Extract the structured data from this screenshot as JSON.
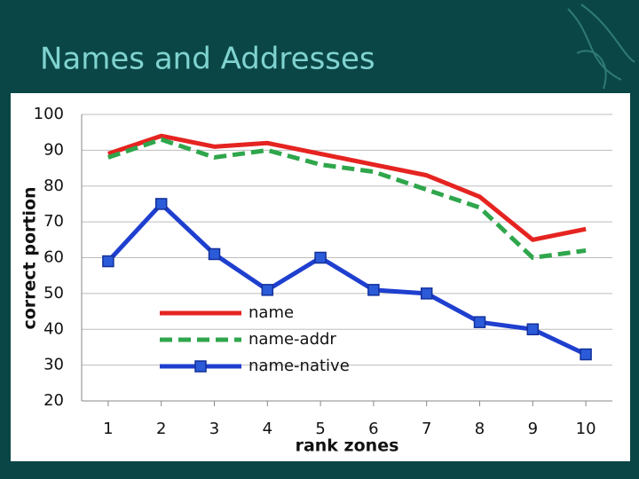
{
  "chart_data": {
    "type": "line",
    "title": "Names and Addresses",
    "x_label": "rank zones",
    "y_label": "correct portion",
    "x": [
      1,
      2,
      3,
      4,
      5,
      6,
      7,
      8,
      9,
      10
    ],
    "xlim": [
      0.5,
      10.5
    ],
    "xticks": [
      1,
      2,
      3,
      4,
      5,
      6,
      7,
      8,
      9,
      10
    ],
    "ylim": [
      20,
      100
    ],
    "yticks": [
      20,
      30,
      40,
      50,
      60,
      70,
      80,
      90,
      100
    ],
    "grid": true,
    "legend": "center-left",
    "series": [
      {
        "name": "name",
        "color": "#e52421",
        "dash": false,
        "marker": false,
        "values": [
          89,
          94,
          91,
          92,
          89,
          86,
          83,
          77,
          65,
          68
        ]
      },
      {
        "name": "name-addr",
        "color": "#2fa64c",
        "dash": true,
        "marker": false,
        "values": [
          88,
          93,
          88,
          90,
          86,
          84,
          79,
          74,
          60,
          62
        ]
      },
      {
        "name": "name-native",
        "color": "#1f3fcf",
        "dash": false,
        "marker": true,
        "values": [
          59,
          75,
          61,
          51,
          60,
          51,
          50,
          42,
          40,
          33
        ]
      }
    ]
  }
}
